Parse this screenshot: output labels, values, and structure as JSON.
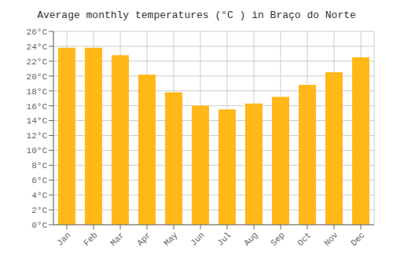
{
  "chart_data": {
    "type": "bar",
    "title": "Average monthly temperatures (°C ) in Braço do Norte",
    "categories": [
      "Jan",
      "Feb",
      "Mar",
      "Apr",
      "May",
      "Jun",
      "Jul",
      "Aug",
      "Sep",
      "Oct",
      "Nov",
      "Dec"
    ],
    "values": [
      23.8,
      23.8,
      22.8,
      20.2,
      17.8,
      16.0,
      15.5,
      16.3,
      17.2,
      18.8,
      20.5,
      22.5
    ],
    "color": "#FFB818",
    "ylim": [
      0,
      26
    ],
    "yticks": [
      {
        "value": 0,
        "label": "0°C"
      },
      {
        "value": 2,
        "label": "2°C"
      },
      {
        "value": 4,
        "label": "4°C"
      },
      {
        "value": 6,
        "label": "6°C"
      },
      {
        "value": 8,
        "label": "8°C"
      },
      {
        "value": 10,
        "label": "10°C"
      },
      {
        "value": 12,
        "label": "12°C"
      },
      {
        "value": 14,
        "label": "14°C"
      },
      {
        "value": 16,
        "label": "16°C"
      },
      {
        "value": 18,
        "label": "18°C"
      },
      {
        "value": 20,
        "label": "20°C"
      },
      {
        "value": 22,
        "label": "22°C"
      },
      {
        "value": 24,
        "label": "24°C"
      },
      {
        "value": 26,
        "label": "26°C"
      }
    ],
    "grid": true
  }
}
